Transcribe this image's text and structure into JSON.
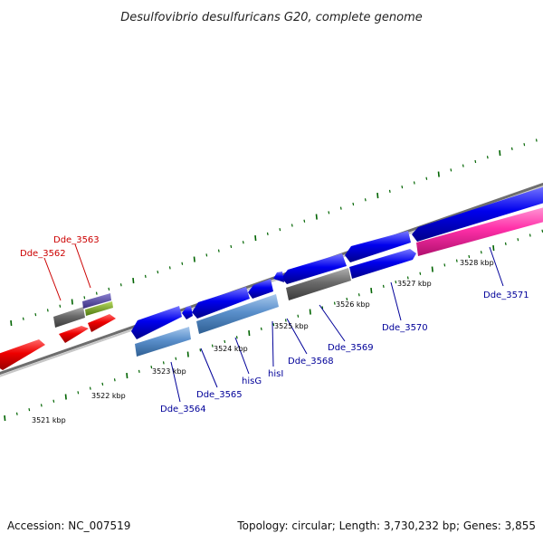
{
  "title": "Desulfovibrio desulfuricans G20, complete genome",
  "footer": {
    "accession": "Accession: NC_007519",
    "topology": "Topology: circular; Length: 3,730,232 bp; Genes: 3,855"
  },
  "colors": {
    "backbone": "#808080",
    "ticks": "#006400",
    "label_forward": "#cc0000",
    "label_reverse": "#000099"
  },
  "scale_labels": [
    "3521 kbp",
    "3522 kbp",
    "3523 kbp",
    "3524 kbp",
    "3525 kbp",
    "3526 kbp",
    "3527 kbp",
    "3528 kbp"
  ],
  "gene_labels": [
    {
      "name": "Dde_3562",
      "color": "#cc0000"
    },
    {
      "name": "Dde_3563",
      "color": "#cc0000"
    },
    {
      "name": "Dde_3564",
      "color": "#000099"
    },
    {
      "name": "Dde_3565",
      "color": "#000099"
    },
    {
      "name": "hisG",
      "color": "#000099"
    },
    {
      "name": "hisI",
      "color": "#000099"
    },
    {
      "name": "Dde_3568",
      "color": "#000099"
    },
    {
      "name": "Dde_3569",
      "color": "#000099"
    },
    {
      "name": "Dde_3570",
      "color": "#000099"
    },
    {
      "name": "Dde_3571",
      "color": "#000099"
    }
  ]
}
